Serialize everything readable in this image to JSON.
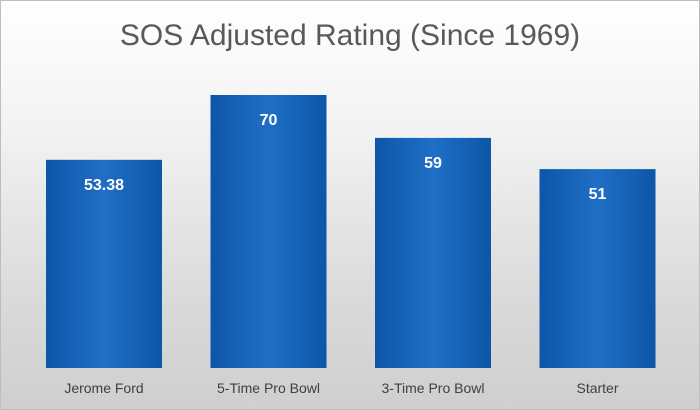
{
  "chart_data": {
    "type": "bar",
    "title": "SOS Adjusted Rating (Since 1969)",
    "categories": [
      "Jerome Ford",
      "5-Time Pro Bowl",
      "3-Time Pro Bowl",
      "Starter"
    ],
    "values": [
      53.38,
      70,
      59,
      51
    ],
    "value_labels": [
      "53.38",
      "70",
      "59",
      "51"
    ],
    "xlabel": "",
    "ylabel": "",
    "ylim": [
      0,
      80
    ],
    "grid": false,
    "legend": "none",
    "bar_color": "#1f6fc6",
    "bar_color_dark": "#0d56a8"
  }
}
